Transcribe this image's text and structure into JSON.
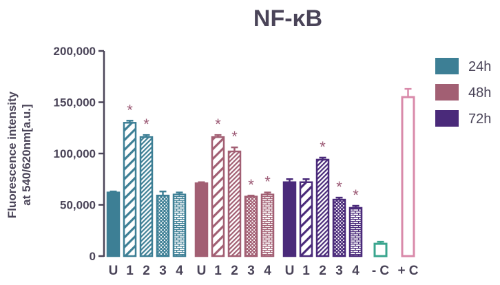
{
  "chart_data": {
    "type": "bar",
    "title": "NF-κB",
    "ylabel": "Fluorescence intensity\nat 540/620nm[a.u.]",
    "xlabel": "",
    "ylim": [
      0,
      200000
    ],
    "yticks": [
      0,
      50000,
      100000,
      150000,
      200000
    ],
    "ytick_labels": [
      "0",
      "50,000",
      "100,000",
      "150,000",
      "200,000"
    ],
    "grid": false,
    "legend_position": "top-right",
    "legend": [
      {
        "name": "24h",
        "color": "#3d7f95"
      },
      {
        "name": "48h",
        "color": "#a25f73"
      },
      {
        "name": "72h",
        "color": "#4a2a7a"
      }
    ],
    "significance_marker": "*",
    "groups": [
      {
        "series": "24h",
        "color": "#3d7f95",
        "bars": [
          {
            "label": "U",
            "value": 62000,
            "error": 1000,
            "pattern": "solid",
            "significant": false
          },
          {
            "label": "1",
            "value": 130000,
            "error": 2000,
            "pattern": "diag-wide",
            "significant": true
          },
          {
            "label": "2",
            "value": 116000,
            "error": 2000,
            "pattern": "diag-dense",
            "significant": true
          },
          {
            "label": "3",
            "value": 59000,
            "error": 4000,
            "pattern": "dots",
            "significant": false
          },
          {
            "label": "4",
            "value": 60000,
            "error": 2000,
            "pattern": "bricks",
            "significant": false
          }
        ]
      },
      {
        "series": "48h",
        "color": "#a25f73",
        "bars": [
          {
            "label": "U",
            "value": 71000,
            "error": 1000,
            "pattern": "solid",
            "significant": false
          },
          {
            "label": "1",
            "value": 116000,
            "error": 2000,
            "pattern": "diag-wide",
            "significant": true
          },
          {
            "label": "2",
            "value": 102000,
            "error": 4000,
            "pattern": "diag-dense",
            "significant": true
          },
          {
            "label": "3",
            "value": 58000,
            "error": 1000,
            "pattern": "dots",
            "significant": true
          },
          {
            "label": "4",
            "value": 60000,
            "error": 2000,
            "pattern": "bricks",
            "significant": true
          }
        ]
      },
      {
        "series": "72h",
        "color": "#4a2a7a",
        "bars": [
          {
            "label": "U",
            "value": 72000,
            "error": 3000,
            "pattern": "solid",
            "significant": false
          },
          {
            "label": "1",
            "value": 72000,
            "error": 3000,
            "pattern": "diag-wide",
            "significant": false
          },
          {
            "label": "2",
            "value": 94000,
            "error": 2000,
            "pattern": "diag-dense",
            "significant": true
          },
          {
            "label": "3",
            "value": 55000,
            "error": 2000,
            "pattern": "dots",
            "significant": true
          },
          {
            "label": "4",
            "value": 47000,
            "error": 2000,
            "pattern": "bricks",
            "significant": true
          }
        ]
      },
      {
        "series": "controls",
        "bars": [
          {
            "label": "- C",
            "value": 12000,
            "error": 2000,
            "pattern": "hollow",
            "color": "#3aa58e",
            "significant": false
          },
          {
            "label": "+ C",
            "value": 155000,
            "error": 8000,
            "pattern": "hollow",
            "color": "#d98aaa",
            "significant": false
          }
        ]
      }
    ]
  }
}
